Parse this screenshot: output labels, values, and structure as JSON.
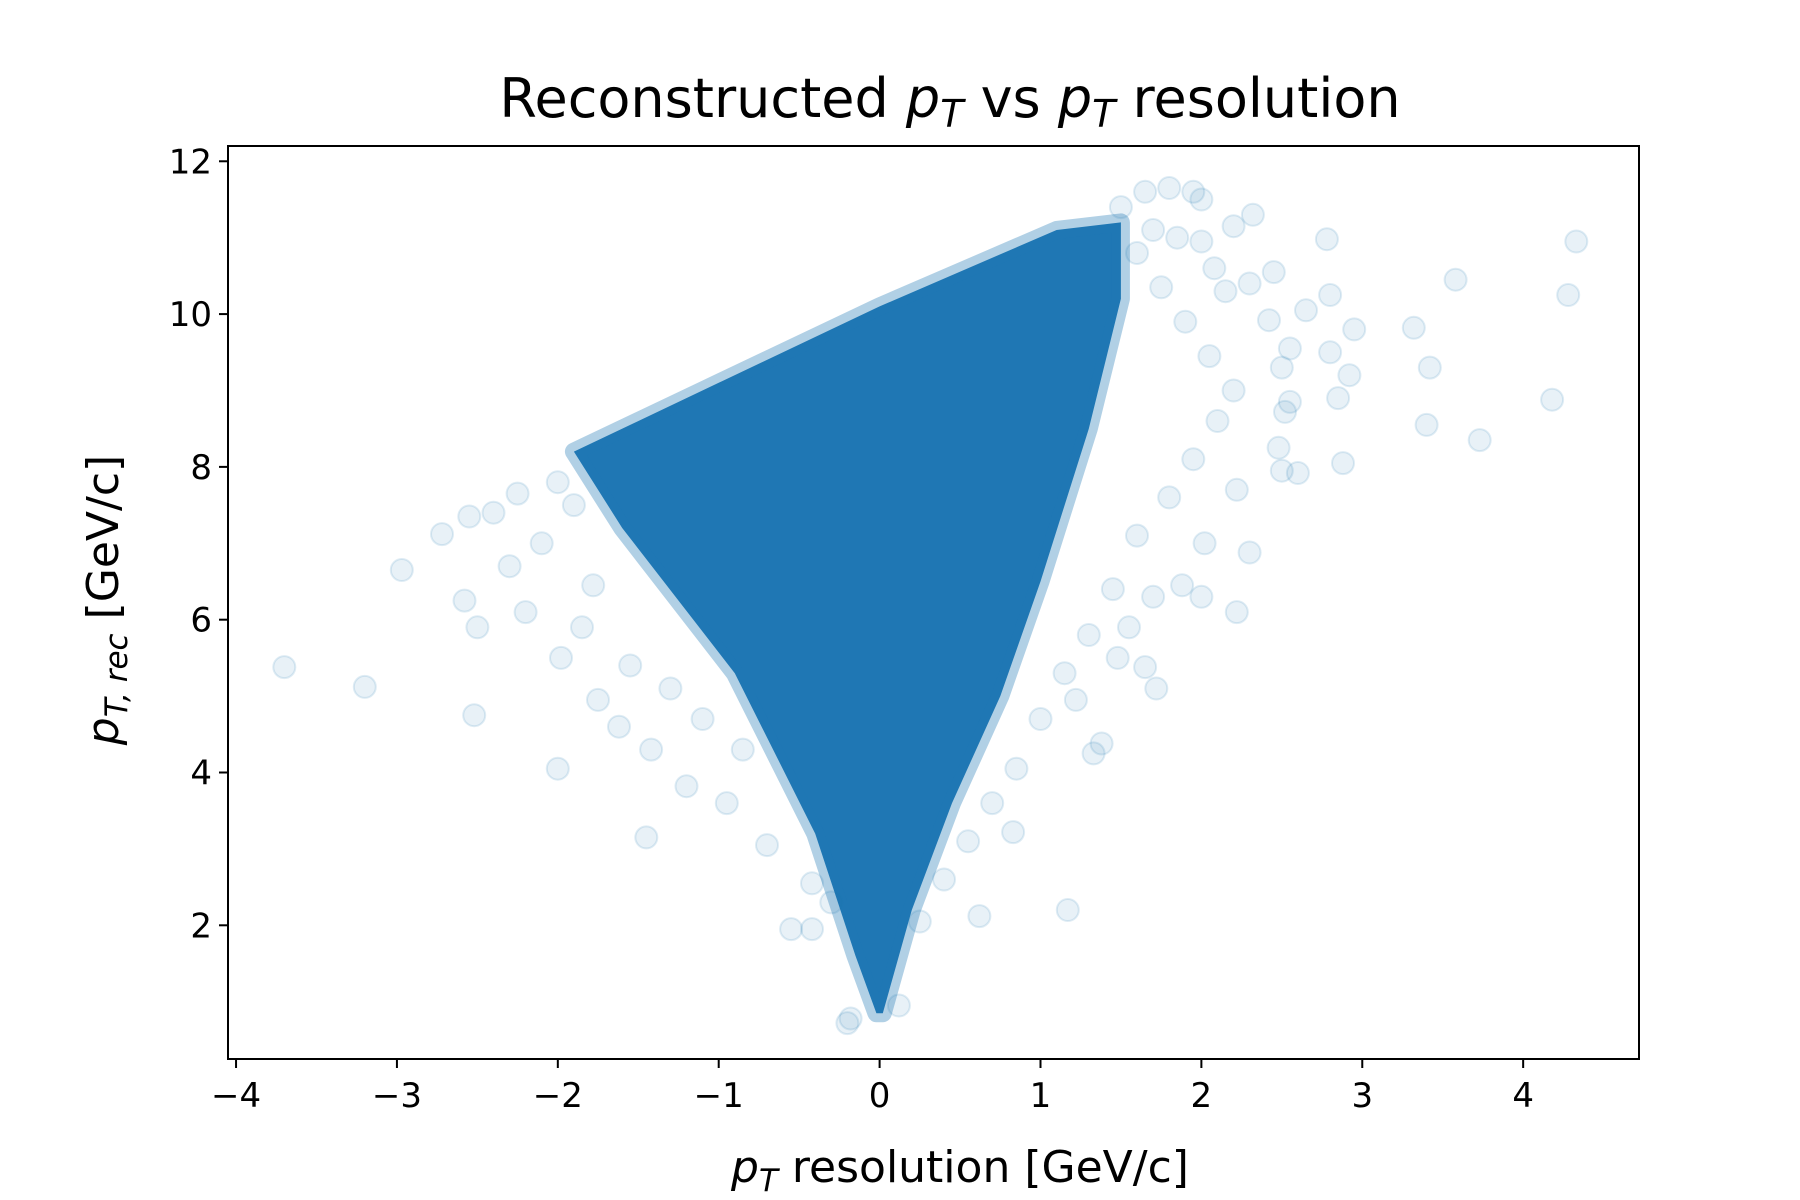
{
  "chart_data": {
    "type": "scatter",
    "title": {
      "prefix": "Reconstructed ",
      "var1": "p",
      "sub1": "T",
      "middle": " vs ",
      "var2": "p",
      "sub2": "T",
      "suffix": " resolution"
    },
    "xlabel": {
      "var": "p",
      "sub": "T",
      "text": " resolution  [GeV/c]"
    },
    "ylabel": {
      "var": "p",
      "sub": "T, rec",
      "text": "  [GeV/c]"
    },
    "xlim": [
      -4.05,
      4.72
    ],
    "ylim": [
      0.25,
      12.2
    ],
    "xticks": [
      -4,
      -3,
      -2,
      -1,
      0,
      1,
      2,
      3,
      4
    ],
    "xtick_labels": [
      "−4",
      "−3",
      "−2",
      "−1",
      "0",
      "1",
      "2",
      "3",
      "4"
    ],
    "yticks": [
      2,
      4,
      6,
      8,
      10,
      12
    ],
    "ytick_labels": [
      "2",
      "4",
      "6",
      "8",
      "10",
      "12"
    ],
    "grid": false,
    "marker": "circle",
    "marker_alpha": 0.1,
    "color": "#1f77b4",
    "density_region": {
      "description_points": [
        [
          -0.02,
          0.85
        ],
        [
          0.02,
          0.85
        ],
        [
          0.2,
          2.2
        ],
        [
          0.45,
          3.6
        ],
        [
          0.75,
          5.0
        ],
        [
          1.0,
          6.5
        ],
        [
          1.3,
          8.5
        ],
        [
          1.5,
          10.2
        ],
        [
          1.5,
          11.2
        ],
        [
          1.1,
          11.1
        ],
        [
          0.0,
          10.1
        ],
        [
          -1.0,
          9.1
        ],
        [
          -1.9,
          8.2
        ],
        [
          -1.6,
          7.2
        ],
        [
          -0.9,
          5.3
        ],
        [
          -0.4,
          3.2
        ],
        [
          -0.15,
          1.6
        ]
      ]
    },
    "outliers": [
      [
        -3.7,
        5.38
      ],
      [
        -3.2,
        5.12
      ],
      [
        -2.97,
        6.65
      ],
      [
        -2.72,
        7.12
      ],
      [
        -2.52,
        4.75
      ],
      [
        -2.58,
        6.25
      ],
      [
        -2.55,
        7.35
      ],
      [
        -2.5,
        5.9
      ],
      [
        -2.0,
        4.05
      ],
      [
        -1.45,
        3.15
      ],
      [
        -0.55,
        1.95
      ],
      [
        -0.42,
        1.95
      ],
      [
        0.62,
        2.12
      ],
      [
        1.17,
        2.2
      ],
      [
        0.83,
        3.22
      ],
      [
        1.33,
        4.25
      ],
      [
        1.38,
        4.38
      ],
      [
        1.72,
        5.1
      ],
      [
        1.65,
        5.38
      ],
      [
        2.22,
        6.1
      ],
      [
        2.3,
        6.88
      ],
      [
        2.5,
        7.95
      ],
      [
        2.6,
        7.92
      ],
      [
        2.88,
        8.05
      ],
      [
        2.52,
        8.72
      ],
      [
        2.55,
        8.85
      ],
      [
        2.85,
        8.9
      ],
      [
        3.4,
        8.55
      ],
      [
        3.73,
        8.35
      ],
      [
        4.18,
        8.88
      ],
      [
        2.8,
        9.5
      ],
      [
        2.95,
        9.8
      ],
      [
        3.32,
        9.82
      ],
      [
        3.42,
        9.3
      ],
      [
        2.92,
        9.2
      ],
      [
        2.55,
        9.55
      ],
      [
        2.42,
        9.92
      ],
      [
        2.65,
        10.05
      ],
      [
        2.8,
        10.25
      ],
      [
        3.58,
        10.45
      ],
      [
        4.28,
        10.25
      ],
      [
        4.33,
        10.95
      ],
      [
        2.78,
        10.98
      ],
      [
        2.45,
        10.55
      ],
      [
        2.32,
        11.3
      ],
      [
        2.0,
        11.5
      ],
      [
        1.95,
        11.6
      ],
      [
        1.8,
        11.65
      ],
      [
        1.65,
        11.6
      ],
      [
        2.2,
        11.15
      ],
      [
        2.0,
        10.95
      ],
      [
        1.85,
        11.0
      ],
      [
        2.08,
        10.6
      ],
      [
        2.3,
        10.4
      ],
      [
        2.15,
        10.3
      ],
      [
        2.5,
        9.3
      ],
      [
        2.48,
        8.25
      ],
      [
        2.22,
        7.7
      ],
      [
        2.02,
        7.0
      ],
      [
        1.88,
        6.45
      ],
      [
        1.7,
        6.3
      ],
      [
        1.55,
        5.9
      ],
      [
        1.22,
        4.95
      ],
      [
        1.48,
        5.5
      ],
      [
        2.0,
        6.3
      ],
      [
        -1.98,
        5.5
      ],
      [
        -1.75,
        4.95
      ],
      [
        -1.62,
        4.6
      ],
      [
        -1.42,
        4.3
      ],
      [
        -1.2,
        3.82
      ],
      [
        -0.95,
        3.6
      ],
      [
        -0.7,
        3.05
      ],
      [
        -0.42,
        2.55
      ],
      [
        -0.3,
        2.3
      ],
      [
        -2.2,
        6.1
      ],
      [
        -2.3,
        6.7
      ],
      [
        -2.1,
        7.0
      ],
      [
        -2.0,
        7.8
      ],
      [
        -1.9,
        7.5
      ],
      [
        -1.78,
        6.45
      ],
      [
        -2.4,
        7.4
      ],
      [
        -2.25,
        7.65
      ],
      [
        -1.85,
        5.9
      ],
      [
        -1.55,
        5.4
      ],
      [
        -1.3,
        5.1
      ],
      [
        -1.1,
        4.7
      ],
      [
        -0.85,
        4.3
      ],
      [
        0.25,
        2.05
      ],
      [
        0.4,
        2.6
      ],
      [
        0.55,
        3.1
      ],
      [
        0.7,
        3.6
      ],
      [
        0.85,
        4.05
      ],
      [
        1.0,
        4.7
      ],
      [
        1.15,
        5.3
      ],
      [
        1.3,
        5.8
      ],
      [
        1.45,
        6.4
      ],
      [
        1.6,
        7.1
      ],
      [
        1.8,
        7.6
      ],
      [
        1.95,
        8.1
      ],
      [
        2.1,
        8.6
      ],
      [
        2.2,
        9.0
      ],
      [
        2.05,
        9.45
      ],
      [
        1.9,
        9.9
      ],
      [
        1.75,
        10.35
      ],
      [
        1.6,
        10.8
      ],
      [
        1.7,
        11.1
      ],
      [
        1.5,
        11.4
      ],
      [
        -0.2,
        0.72
      ],
      [
        -0.18,
        0.78
      ],
      [
        0.12,
        0.95
      ]
    ]
  }
}
